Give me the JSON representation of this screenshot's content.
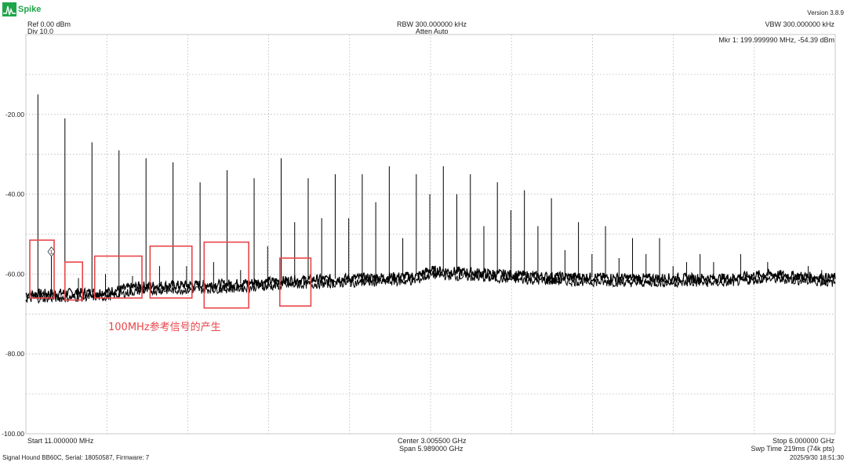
{
  "app": {
    "name": "Spike",
    "version": "Version 3.8.9",
    "logo_icon": "spike-waveform-icon",
    "brand_color": "#1ea54a"
  },
  "header": {
    "ref": "Ref 0.00 dBm",
    "div": "Div 10.0",
    "rbw": "RBW 300.000000 kHz",
    "atten": "Atten Auto",
    "vbw": "VBW 300.000000 kHz",
    "marker": "Mkr 1: 199.999990 MHz, -54.39 dBm"
  },
  "footer": {
    "start": "Start 11.000000 MHz",
    "center": "Center 3.005500 GHz",
    "span": "Span 5.989000 GHz",
    "stop": "Stop 6.000000 GHz",
    "sweep": "Swp Time 219ms (74k pts)",
    "device": "Signal Hound BB60C, Serial: 18050587, Firmware: 7",
    "timestamp": "2025/9/30 18:51:30"
  },
  "annotation": {
    "text": "100MHz参考信号的产生",
    "color": "#e8464a"
  },
  "chart_data": {
    "type": "line",
    "xlim_mhz": [
      11,
      6000
    ],
    "ylim_dbm": [
      -100,
      0
    ],
    "grid": true,
    "ytick_labels": [
      "-20.00",
      "-40.00",
      "-60.00",
      "-80.00",
      "-100.00"
    ],
    "ytick_values": [
      -20,
      -40,
      -60,
      -80,
      -100
    ],
    "trace_color": "#000000",
    "marker": {
      "label": "1",
      "x_mhz": 199.99999,
      "y_dbm": -54.39
    },
    "noise_floor": [
      {
        "x_mhz": 11,
        "y_dbm": -65
      },
      {
        "x_mhz": 600,
        "y_dbm": -64.5
      },
      {
        "x_mhz": 850,
        "y_dbm": -63
      },
      {
        "x_mhz": 1500,
        "y_dbm": -62.5
      },
      {
        "x_mhz": 2000,
        "y_dbm": -61.5
      },
      {
        "x_mhz": 2900,
        "y_dbm": -60.5
      },
      {
        "x_mhz": 3000,
        "y_dbm": -59
      },
      {
        "x_mhz": 3800,
        "y_dbm": -60.5
      },
      {
        "x_mhz": 4500,
        "y_dbm": -61
      },
      {
        "x_mhz": 5200,
        "y_dbm": -61
      },
      {
        "x_mhz": 5500,
        "y_dbm": -60
      },
      {
        "x_mhz": 6000,
        "y_dbm": -61
      }
    ],
    "spurs": [
      {
        "x_mhz": 100,
        "y_dbm": -15
      },
      {
        "x_mhz": 200,
        "y_dbm": -54.4
      },
      {
        "x_mhz": 300,
        "y_dbm": -21
      },
      {
        "x_mhz": 400,
        "y_dbm": -61
      },
      {
        "x_mhz": 500,
        "y_dbm": -27
      },
      {
        "x_mhz": 600,
        "y_dbm": -60
      },
      {
        "x_mhz": 700,
        "y_dbm": -29
      },
      {
        "x_mhz": 800,
        "y_dbm": -60.5
      },
      {
        "x_mhz": 900,
        "y_dbm": -31
      },
      {
        "x_mhz": 1000,
        "y_dbm": -58
      },
      {
        "x_mhz": 1100,
        "y_dbm": -32
      },
      {
        "x_mhz": 1200,
        "y_dbm": -58
      },
      {
        "x_mhz": 1300,
        "y_dbm": -37
      },
      {
        "x_mhz": 1400,
        "y_dbm": -57
      },
      {
        "x_mhz": 1500,
        "y_dbm": -34
      },
      {
        "x_mhz": 1600,
        "y_dbm": -59
      },
      {
        "x_mhz": 1700,
        "y_dbm": -36
      },
      {
        "x_mhz": 1800,
        "y_dbm": -53
      },
      {
        "x_mhz": 1900,
        "y_dbm": -31
      },
      {
        "x_mhz": 2000,
        "y_dbm": -47
      },
      {
        "x_mhz": 2100,
        "y_dbm": -36
      },
      {
        "x_mhz": 2200,
        "y_dbm": -46
      },
      {
        "x_mhz": 2300,
        "y_dbm": -35
      },
      {
        "x_mhz": 2400,
        "y_dbm": -46
      },
      {
        "x_mhz": 2500,
        "y_dbm": -35
      },
      {
        "x_mhz": 2600,
        "y_dbm": -42
      },
      {
        "x_mhz": 2700,
        "y_dbm": -33
      },
      {
        "x_mhz": 2800,
        "y_dbm": -51
      },
      {
        "x_mhz": 2900,
        "y_dbm": -35
      },
      {
        "x_mhz": 3000,
        "y_dbm": -40
      },
      {
        "x_mhz": 3100,
        "y_dbm": -33
      },
      {
        "x_mhz": 3200,
        "y_dbm": -40
      },
      {
        "x_mhz": 3300,
        "y_dbm": -35
      },
      {
        "x_mhz": 3400,
        "y_dbm": -48
      },
      {
        "x_mhz": 3500,
        "y_dbm": -37
      },
      {
        "x_mhz": 3600,
        "y_dbm": -44
      },
      {
        "x_mhz": 3700,
        "y_dbm": -39
      },
      {
        "x_mhz": 3800,
        "y_dbm": -48
      },
      {
        "x_mhz": 3900,
        "y_dbm": -41
      },
      {
        "x_mhz": 4000,
        "y_dbm": -54
      },
      {
        "x_mhz": 4100,
        "y_dbm": -47
      },
      {
        "x_mhz": 4200,
        "y_dbm": -55
      },
      {
        "x_mhz": 4300,
        "y_dbm": -48
      },
      {
        "x_mhz": 4400,
        "y_dbm": -56
      },
      {
        "x_mhz": 4500,
        "y_dbm": -51
      },
      {
        "x_mhz": 4600,
        "y_dbm": -55
      },
      {
        "x_mhz": 4700,
        "y_dbm": -51
      },
      {
        "x_mhz": 4800,
        "y_dbm": -58
      },
      {
        "x_mhz": 4900,
        "y_dbm": -57
      },
      {
        "x_mhz": 5000,
        "y_dbm": -55
      },
      {
        "x_mhz": 5100,
        "y_dbm": -57
      },
      {
        "x_mhz": 5300,
        "y_dbm": -55
      },
      {
        "x_mhz": 5500,
        "y_dbm": -57
      },
      {
        "x_mhz": 5800,
        "y_dbm": -58
      },
      {
        "x_mhz": 5900,
        "y_dbm": -59
      }
    ],
    "highlight_boxes": [
      {
        "x_mhz": [
          40,
          220
        ],
        "y_dbm": [
          -51.5,
          -66
        ]
      },
      {
        "x_mhz": [
          300,
          430
        ],
        "y_dbm": [
          -57,
          -66.5
        ]
      },
      {
        "x_mhz": [
          520,
          870
        ],
        "y_dbm": [
          -55.5,
          -66
        ]
      },
      {
        "x_mhz": [
          930,
          1240
        ],
        "y_dbm": [
          -53,
          -66
        ]
      },
      {
        "x_mhz": [
          1330,
          1660
        ],
        "y_dbm": [
          -52,
          -68.5
        ]
      },
      {
        "x_mhz": [
          1890,
          2120
        ],
        "y_dbm": [
          -56,
          -68
        ]
      }
    ]
  }
}
